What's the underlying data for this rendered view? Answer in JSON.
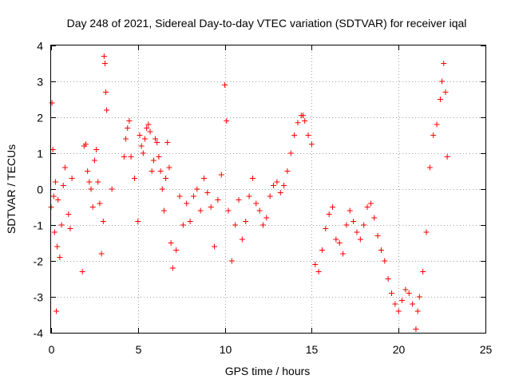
{
  "chart_data": {
    "type": "scatter",
    "title": "Day 248 of 2021, Sidereal Day-to-day VTEC variation (SDTVAR) for receiver iqal",
    "xlabel": "GPS time / hours",
    "ylabel": "SDTVAR / TECUs",
    "xlim": [
      0,
      25
    ],
    "ylim": [
      -4,
      4
    ],
    "xticks": [
      0,
      5,
      10,
      15,
      20,
      25
    ],
    "yticks": [
      -4,
      -3,
      -2,
      -1,
      0,
      1,
      2,
      3,
      4
    ],
    "grid": true,
    "marker": "+",
    "color": "#ff0000",
    "series": [
      {
        "name": "SDTVAR",
        "x": [
          0.0,
          0.05,
          0.1,
          0.15,
          0.2,
          0.25,
          0.3,
          0.35,
          0.4,
          0.5,
          0.6,
          0.7,
          0.8,
          1.0,
          1.1,
          1.2,
          1.8,
          1.9,
          2.0,
          2.1,
          2.2,
          2.3,
          2.4,
          2.5,
          2.6,
          2.7,
          2.8,
          2.9,
          3.0,
          3.05,
          3.1,
          3.15,
          3.2,
          3.5,
          4.2,
          4.3,
          4.4,
          4.5,
          4.6,
          4.8,
          5.0,
          5.1,
          5.2,
          5.3,
          5.4,
          5.5,
          5.6,
          5.7,
          5.8,
          5.9,
          6.0,
          6.1,
          6.2,
          6.3,
          6.4,
          6.5,
          6.6,
          6.7,
          6.8,
          6.9,
          7.0,
          7.2,
          7.4,
          7.6,
          7.8,
          8.0,
          8.2,
          8.4,
          8.6,
          8.8,
          9.0,
          9.2,
          9.4,
          9.6,
          9.8,
          10.0,
          10.1,
          10.2,
          10.4,
          10.6,
          10.8,
          11.0,
          11.2,
          11.4,
          11.6,
          11.8,
          12.0,
          12.2,
          12.4,
          12.6,
          12.8,
          13.0,
          13.2,
          13.4,
          13.6,
          13.8,
          14.0,
          14.2,
          14.4,
          14.5,
          14.6,
          14.8,
          15.0,
          15.2,
          15.4,
          15.6,
          15.8,
          16.0,
          16.2,
          16.4,
          16.6,
          16.8,
          17.0,
          17.2,
          17.4,
          17.6,
          17.8,
          18.0,
          18.2,
          18.4,
          18.6,
          18.8,
          19.0,
          19.2,
          19.4,
          19.6,
          19.8,
          20.0,
          20.2,
          20.4,
          20.6,
          20.8,
          21.0,
          21.1,
          21.2,
          21.4,
          21.6,
          21.8,
          22.0,
          22.2,
          22.4,
          22.5,
          22.6,
          22.7,
          22.8
        ],
        "y": [
          -0.5,
          2.4,
          1.1,
          -0.2,
          -1.2,
          0.2,
          -3.4,
          -1.6,
          -0.3,
          -1.9,
          -1.0,
          0.1,
          0.6,
          -0.7,
          -1.1,
          0.3,
          -2.3,
          1.2,
          1.25,
          0.5,
          0.2,
          0.0,
          -0.5,
          0.8,
          1.1,
          0.2,
          -0.4,
          -1.8,
          -0.9,
          3.7,
          3.5,
          2.7,
          2.2,
          0.0,
          0.9,
          1.4,
          1.7,
          1.9,
          0.9,
          0.3,
          -0.9,
          1.5,
          1.2,
          1.0,
          1.4,
          1.7,
          1.8,
          1.6,
          0.5,
          0.8,
          1.4,
          1.3,
          0.9,
          0.5,
          0.0,
          -0.6,
          0.3,
          1.3,
          0.6,
          -1.5,
          -2.2,
          -1.7,
          -0.2,
          -1.0,
          -0.4,
          -0.9,
          -0.2,
          0.0,
          -0.6,
          0.3,
          -0.1,
          -0.5,
          -1.6,
          -0.3,
          0.4,
          2.9,
          1.9,
          -0.6,
          -2.0,
          -1.0,
          -0.3,
          -1.4,
          -0.9,
          -0.2,
          0.3,
          -0.4,
          -0.6,
          -1.0,
          -0.8,
          -0.2,
          0.1,
          0.2,
          -0.1,
          0.1,
          0.5,
          1.0,
          1.5,
          1.85,
          2.05,
          2.05,
          1.9,
          1.5,
          1.25,
          -2.1,
          -2.3,
          -1.7,
          -1.1,
          -0.7,
          -0.5,
          -1.4,
          -1.5,
          -1.8,
          -1.0,
          -0.6,
          -0.9,
          -1.2,
          -1.4,
          -1.0,
          -0.5,
          -0.4,
          -0.8,
          -1.3,
          -1.7,
          -2.0,
          -2.5,
          -2.9,
          -3.2,
          -3.4,
          -3.1,
          -2.8,
          -2.9,
          -3.2,
          -3.9,
          -3.4,
          -3.0,
          -2.3,
          -1.2,
          0.6,
          1.5,
          1.8,
          2.5,
          3.0,
          3.5,
          2.7,
          0.9
        ]
      }
    ]
  }
}
